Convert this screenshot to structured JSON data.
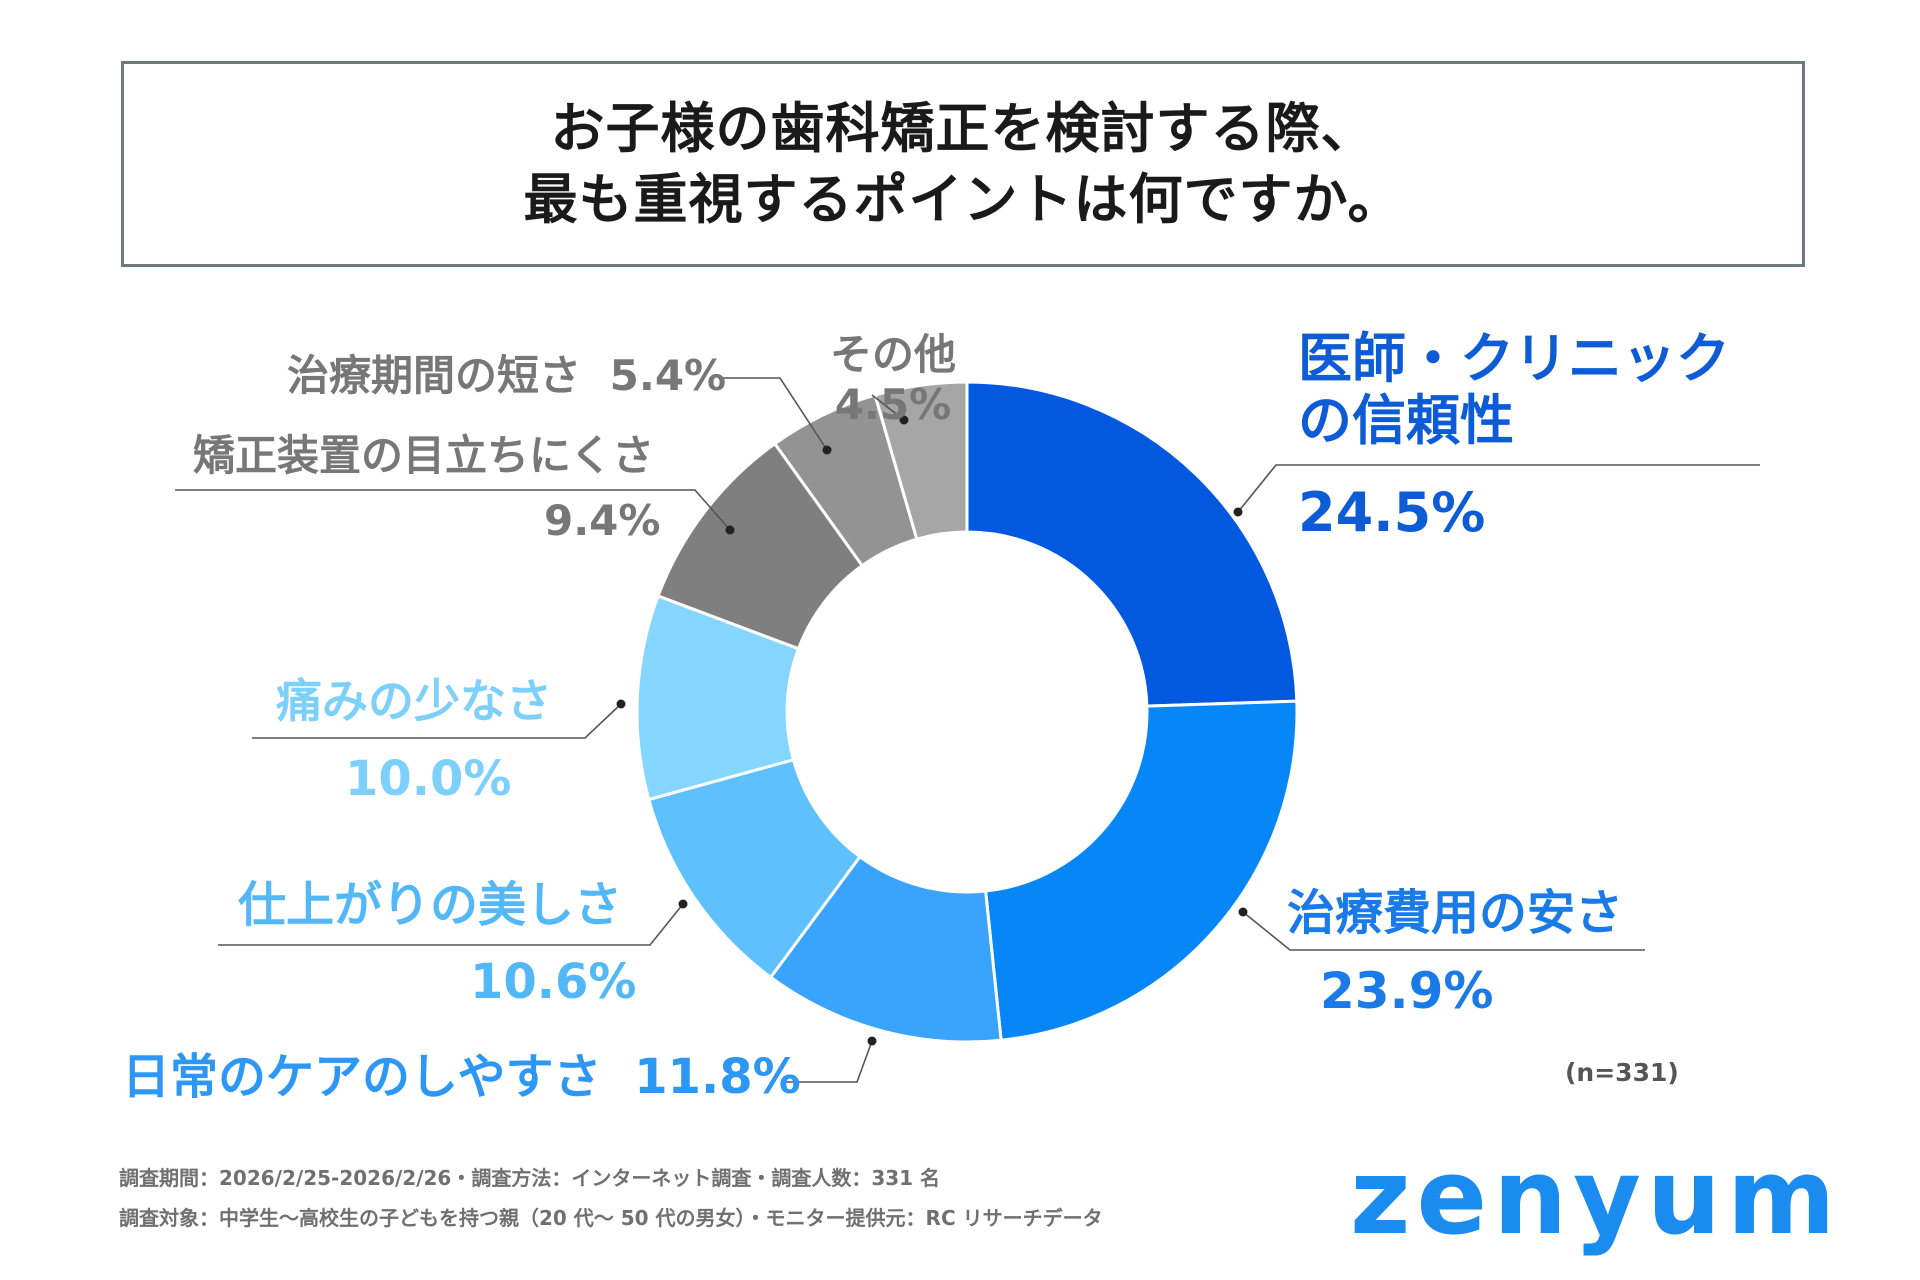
{
  "title": {
    "line1": "お子様の歯科矯正を検討する際、",
    "line2": "最も重視するポイントは何ですか。"
  },
  "chart_data": {
    "type": "pie",
    "variant": "donut",
    "title": "お子様の歯科矯正を検討する際、最も重視するポイントは何ですか。",
    "slices": [
      {
        "label": "医師・クリニックの信頼性",
        "value": 24.5,
        "display": "24.5%",
        "color": "#0258de"
      },
      {
        "label": "治療費用の安さ",
        "value": 23.9,
        "display": "23.9%",
        "color": "#0787f7"
      },
      {
        "label": "日常のケアのしやすさ",
        "value": 11.8,
        "display": "11.8%",
        "color": "#3aa3fb"
      },
      {
        "label": "仕上がりの美しさ",
        "value": 10.6,
        "display": "10.6%",
        "color": "#5ec0fd"
      },
      {
        "label": "痛みの少なさ",
        "value": 10.0,
        "display": "10.0%",
        "color": "#85d6fe"
      },
      {
        "label": "矯正装置の目立ちにくさ",
        "value": 9.4,
        "display": "9.4%",
        "color": "#7f7f7f"
      },
      {
        "label": "治療期間の短さ",
        "value": 5.4,
        "display": "5.4%",
        "color": "#939393"
      },
      {
        "label": "その他",
        "value": 4.5,
        "display": "4.5%",
        "color": "#a6a6a6"
      }
    ],
    "unit": "%",
    "sample_size": "(n=331)"
  },
  "labels": {
    "s0": {
      "name_line1": "医師・クリニック",
      "name_line2": "の信頼性",
      "pct": "24.5%",
      "color": "#0d5cd6"
    },
    "s1": {
      "name": "治療費用の安さ",
      "pct": "23.9%",
      "color": "#1a7be8"
    },
    "s2": {
      "name": "日常のケアのしやすさ",
      "pct": "11.8%",
      "color": "#2c97f5"
    },
    "s3": {
      "name": "仕上がりの美しさ",
      "pct": "10.6%",
      "color": "#52b8f7"
    },
    "s4": {
      "name": "痛みの少なさ",
      "pct": "10.0%",
      "color": "#7dd0fb"
    },
    "s5": {
      "name": "矯正装置の目立ちにくさ",
      "pct": "9.4%",
      "color": "#777777"
    },
    "s6": {
      "name": "治療期間の短さ",
      "pct": "5.4%",
      "color": "#777777"
    },
    "s7": {
      "name": "その他",
      "pct": "4.5%",
      "color": "#777777"
    }
  },
  "note": "(n=331)",
  "footer": {
    "line1": "調査期間：2026/2/25-2026/2/26・調査方法：インターネット調査・調査人数：331 名",
    "line2": "調査対象：中学生〜高校生の子どもを持つ親（20 代〜 50 代の男女）・モニター提供元：RC リサーチデータ"
  },
  "logo": {
    "text": "zenyum",
    "color": "#1a8cf0"
  }
}
